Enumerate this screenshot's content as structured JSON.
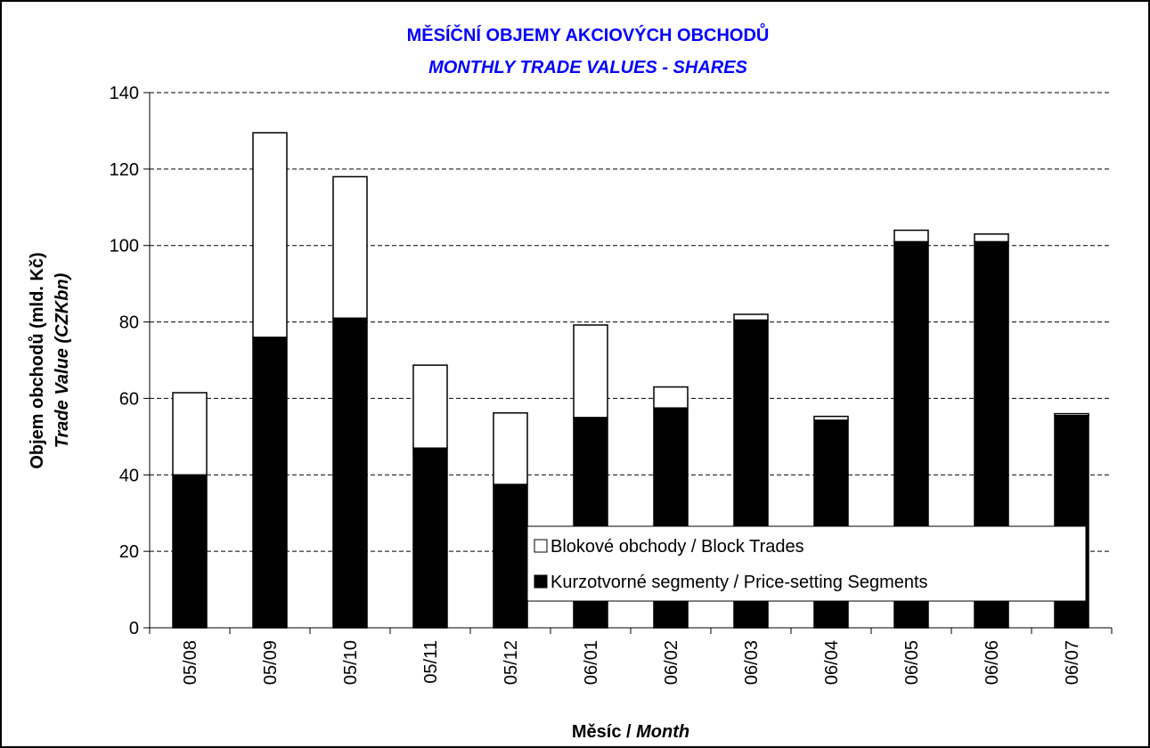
{
  "chart_data": {
    "type": "stacked_bar",
    "title": [
      "MĚSÍČNÍ OBJEMY AKCIOVÝCH OBCHODŮ",
      "MONTHLY TRADE VALUES - SHARES"
    ],
    "title_color": "#0000ff",
    "y_label": [
      "Objem obchodů (mld. Kč)",
      "Trade Value (CZKbn)"
    ],
    "x_label": [
      "Měsíc /",
      "Month"
    ],
    "categories": [
      "05/08",
      "05/09",
      "05/10",
      "05/11",
      "05/12",
      "06/01",
      "06/02",
      "06/03",
      "06/04",
      "06/05",
      "06/06",
      "06/07"
    ],
    "series": [
      {
        "name": "Kurzotvorné segmenty / Price-setting Segments",
        "color": "#000000",
        "values": [
          40,
          76,
          81,
          47,
          37.5,
          55,
          57.5,
          80.5,
          54.3,
          101,
          101,
          55.5
        ]
      },
      {
        "name": "Blokové obchody / Block Trades",
        "color": "#ffffff",
        "values": [
          21.5,
          53.5,
          37,
          21.7,
          18.7,
          24.2,
          5.5,
          1.5,
          1,
          3,
          2,
          0.5
        ]
      }
    ],
    "ylim": [
      0,
      140
    ],
    "yticks": [
      0,
      20,
      40,
      60,
      80,
      100,
      120,
      140
    ],
    "grid": true,
    "legend": "lower right"
  }
}
